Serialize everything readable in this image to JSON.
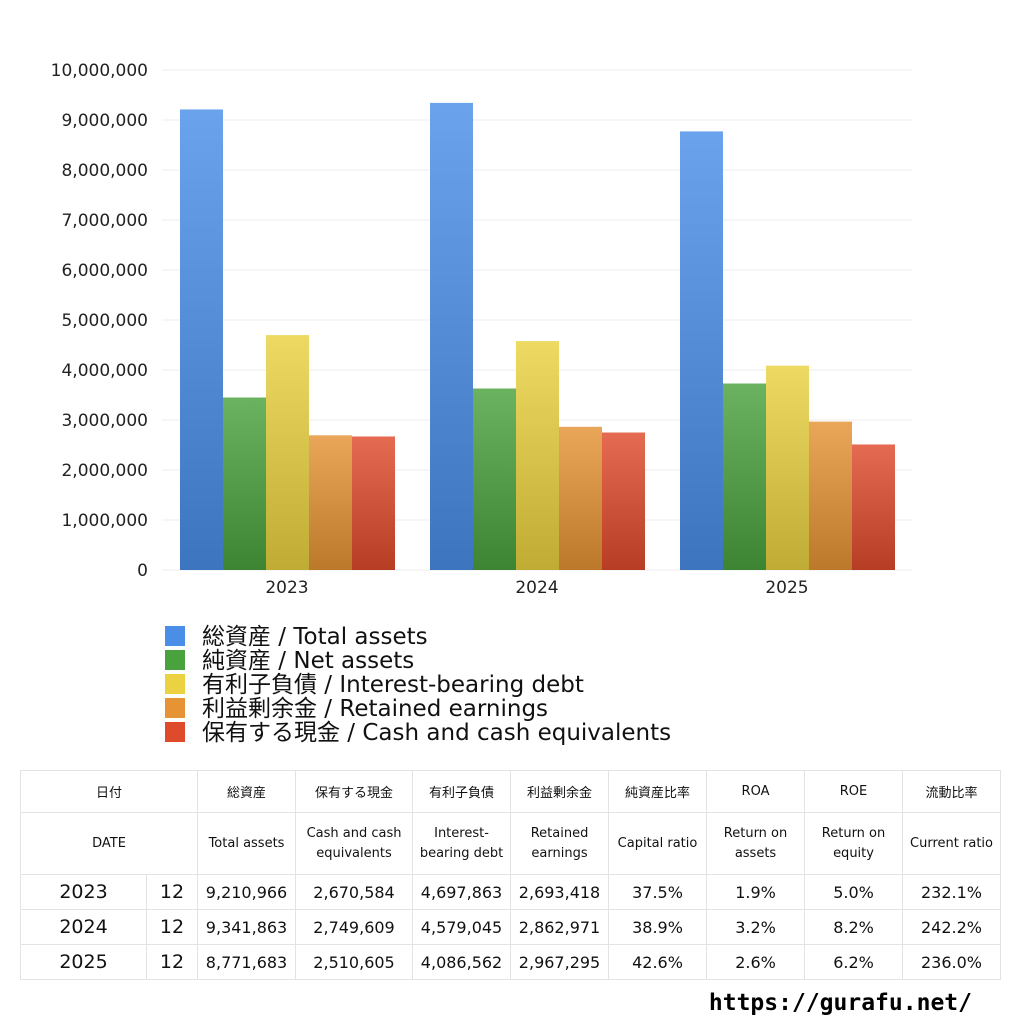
{
  "chart_data": {
    "type": "bar",
    "categories": [
      "2023",
      "2024",
      "2025"
    ],
    "series": [
      {
        "name": "総資産 / Total assets",
        "values": [
          9210966,
          9341863,
          8771683
        ]
      },
      {
        "name": "純資産 / Net assets",
        "values": [
          3450000,
          3630000,
          3730000
        ]
      },
      {
        "name": "有利子負債 / Interest-bearing debt",
        "values": [
          4697863,
          4579045,
          4086562
        ]
      },
      {
        "name": "利益剰余金 / Retained earnings",
        "values": [
          2693418,
          2862971,
          2967295
        ]
      },
      {
        "name": "保有する現金 /  Cash and cash equivalents",
        "values": [
          2670584,
          2749609,
          2510605
        ]
      }
    ],
    "yticks": [
      "0",
      "1,000,000",
      "2,000,000",
      "3,000,000",
      "4,000,000",
      "5,000,000",
      "6,000,000",
      "7,000,000",
      "8,000,000",
      "9,000,000",
      "10,000,000"
    ],
    "ylim": [
      0,
      10000000
    ],
    "grid": true,
    "legend_position": "bottom",
    "colors": [
      "#4a8ee8",
      "#4aa23e",
      "#ead240",
      "#e59335",
      "#df4a2c"
    ]
  },
  "table": {
    "header_jp": [
      "日付",
      "",
      "総資産",
      "保有する現金",
      "有利子負債",
      "利益剰余金",
      "純資産比率",
      "ROA",
      "ROE",
      "流動比率"
    ],
    "header_en": [
      "DATE",
      "",
      "Total assets",
      "Cash and cash equivalents",
      "Interest-bearing debt",
      "Retained earnings",
      "Capital ratio",
      "Return on assets",
      "Return on equity",
      "Current ratio"
    ],
    "rows": [
      [
        "2023",
        "12",
        "9,210,966",
        "2,670,584",
        "4,697,863",
        "2,693,418",
        "37.5%",
        "1.9%",
        "5.0%",
        "232.1%"
      ],
      [
        "2024",
        "12",
        "9,341,863",
        "2,749,609",
        "4,579,045",
        "2,862,971",
        "38.9%",
        "3.2%",
        "8.2%",
        "242.2%"
      ],
      [
        "2025",
        "12",
        "8,771,683",
        "2,510,605",
        "4,086,562",
        "2,967,295",
        "42.6%",
        "2.6%",
        "6.2%",
        "236.0%"
      ]
    ]
  },
  "site_url": "https://gurafu.net/"
}
